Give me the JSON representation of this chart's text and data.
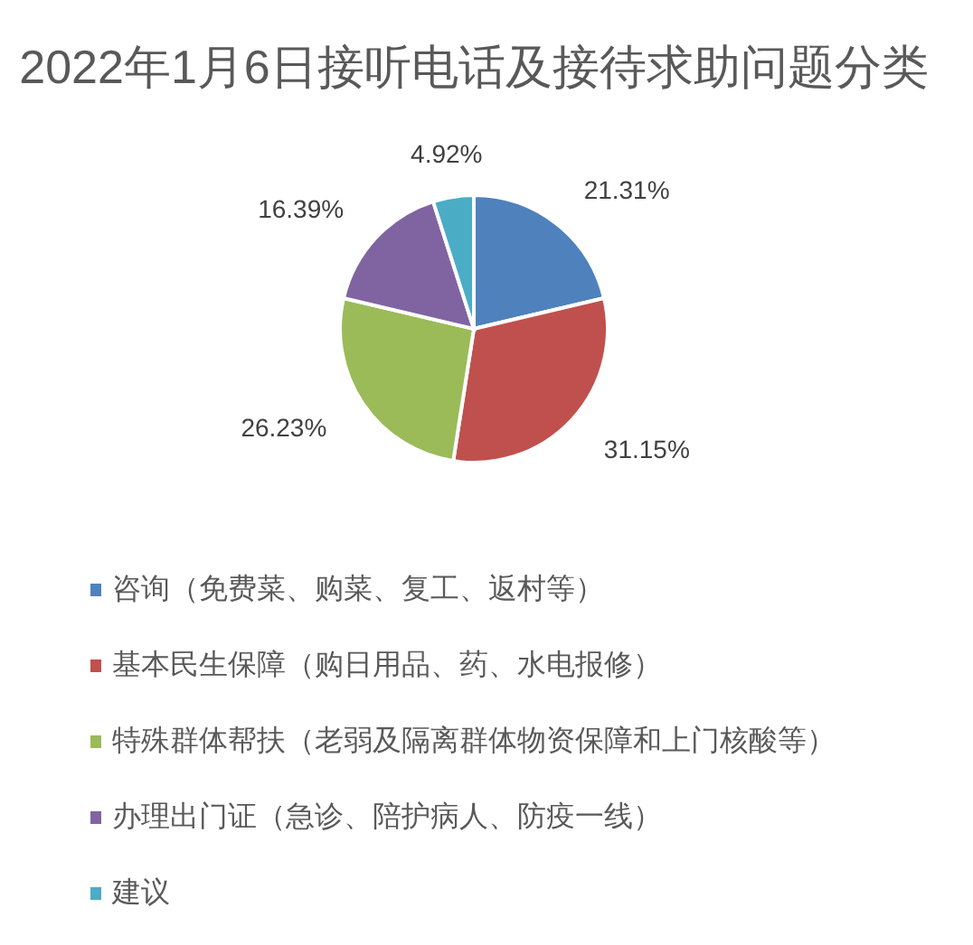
{
  "chart_data": {
    "type": "pie",
    "title": "2022年1月6日接听电话及接待求助问题分类",
    "categories": [
      "咨询（免费菜、购菜、复工、返村等）",
      "基本民生保障（购日用品、药、水电报修）",
      "特殊群体帮扶（老弱及隔离群体物资保障和上门核酸等）",
      "办理出门证（急诊、陪护病人、防疫一线）",
      "建议"
    ],
    "values": [
      21.31,
      31.15,
      26.23,
      16.39,
      4.92
    ],
    "colors": [
      "#4f81bd",
      "#c0504d",
      "#9bbb59",
      "#8064a2",
      "#4bacc6"
    ],
    "value_labels": [
      "21.31%",
      "31.15%",
      "26.23%",
      "16.39%",
      "4.92%"
    ],
    "legend": "bottom"
  }
}
